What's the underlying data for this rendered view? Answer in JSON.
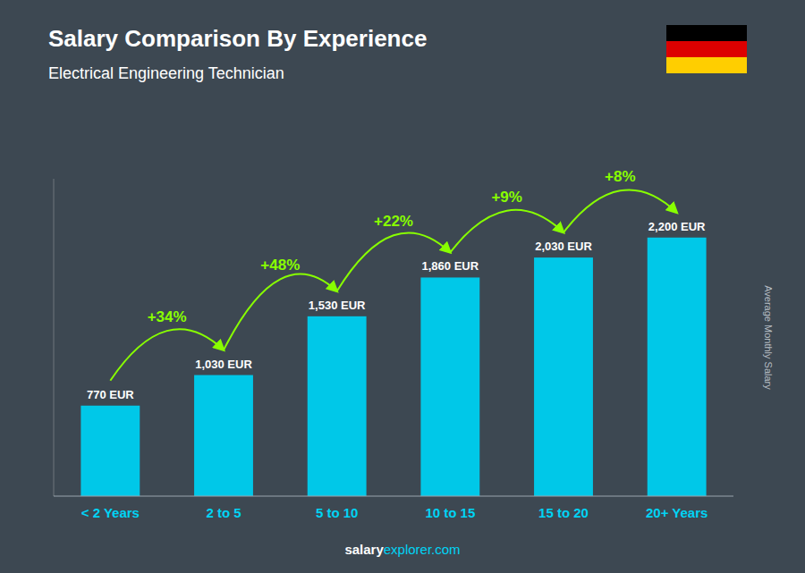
{
  "chart_data": {
    "type": "bar",
    "title": "Salary Comparison By Experience",
    "subtitle": "Electrical Engineering Technician",
    "y_label": "Average Monthly Salary",
    "categories": [
      "< 2 Years",
      "2 to 5",
      "5 to 10",
      "10 to 15",
      "15 to 20",
      "20+ Years"
    ],
    "values": [
      770,
      1030,
      1530,
      1860,
      2030,
      2200
    ],
    "value_labels": [
      "770 EUR",
      "1,030 EUR",
      "1,530 EUR",
      "1,860 EUR",
      "2,030 EUR",
      "2,200 EUR"
    ],
    "data_labels": true,
    "growth_labels": [
      "+34%",
      "+48%",
      "+22%",
      "+9%",
      "+8%"
    ],
    "color": "#00c8e8",
    "ylim": [
      0,
      2700
    ],
    "tick_labels": "x",
    "grid": false,
    "footer": [
      "salary",
      "explorer.com"
    ]
  }
}
